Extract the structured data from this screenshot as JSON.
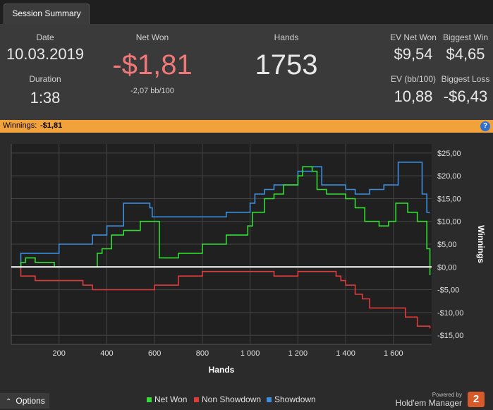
{
  "tab": {
    "label": "Session Summary"
  },
  "summary": {
    "date_label": "Date",
    "date_value": "10.03.2019",
    "duration_label": "Duration",
    "duration_value": "1:38",
    "net_won_label": "Net Won",
    "net_won_value": "-$1,81",
    "net_won_sub": "-2,07 bb/100",
    "hands_label": "Hands",
    "hands_value": "1753",
    "ev_net_won_label": "EV Net Won",
    "ev_net_won_value": "$9,54",
    "biggest_win_label": "Biggest Win",
    "biggest_win_value": "$4,65",
    "ev_bb_label": "EV (bb/100)",
    "ev_bb_value": "10,88",
    "biggest_loss_label": "Biggest Loss",
    "biggest_loss_value": "-$6,43"
  },
  "strip": {
    "label": "Winnings:",
    "value": "-$1,81",
    "help": "?"
  },
  "colors": {
    "net_won": "#33dd33",
    "non_showdown": "#e03b3b",
    "showdown": "#3c8ede",
    "negative": "#f07878",
    "strip": "#f2a23a"
  },
  "chart_data": {
    "type": "line",
    "xlabel": "Hands",
    "ylabel": "Winnings",
    "xlim": [
      0,
      1760
    ],
    "ylim": [
      -17,
      27
    ],
    "x_ticks": [
      200,
      400,
      600,
      800,
      1000,
      1200,
      1400,
      1600
    ],
    "x_tick_labels": [
      "200",
      "400",
      "600",
      "800",
      "1 000",
      "1 200",
      "1 400",
      "1 600"
    ],
    "y_ticks": [
      25,
      20,
      15,
      10,
      5,
      0,
      -5,
      -10,
      -15
    ],
    "y_tick_labels": [
      "$25,00",
      "$20,00",
      "$15,00",
      "$10,00",
      "$5,00",
      "$0,00",
      "-$5,00",
      "-$10,00",
      "-$15,00"
    ],
    "series": [
      {
        "name": "Net Won",
        "color": "#33dd33",
        "x": [
          0,
          40,
          60,
          100,
          180,
          340,
          360,
          380,
          420,
          470,
          540,
          600,
          620,
          640,
          700,
          800,
          900,
          940,
          990,
          1010,
          1060,
          1100,
          1140,
          1200,
          1220,
          1240,
          1260,
          1280,
          1320,
          1400,
          1440,
          1480,
          1540,
          1580,
          1610,
          1660,
          1700,
          1740,
          1753
        ],
        "y": [
          0,
          1,
          2,
          1,
          0,
          0,
          3,
          4,
          7,
          8,
          10,
          10,
          2,
          2,
          3,
          5,
          7,
          7,
          9,
          12,
          15,
          16,
          18,
          20,
          22,
          22,
          21,
          17,
          16,
          15,
          13,
          10,
          9,
          10,
          14,
          12,
          10,
          4,
          -1.81
        ]
      },
      {
        "name": "Non Showdown",
        "color": "#e03b3b",
        "x": [
          0,
          40,
          100,
          200,
          300,
          340,
          400,
          500,
          560,
          600,
          700,
          800,
          900,
          1000,
          1050,
          1100,
          1200,
          1240,
          1300,
          1360,
          1380,
          1400,
          1440,
          1470,
          1500,
          1560,
          1600,
          1650,
          1700,
          1753
        ],
        "y": [
          0,
          -2,
          -3,
          -3,
          -4,
          -5,
          -5,
          -5,
          -5,
          -4,
          -2,
          -1,
          -1,
          -1,
          -1,
          -2,
          -1,
          -1,
          -1,
          -2,
          -3,
          -4,
          -6,
          -7,
          -9,
          -9,
          -9,
          -11,
          -13,
          -13.5
        ]
      },
      {
        "name": "Showdown",
        "color": "#3c8ede",
        "x": [
          0,
          40,
          100,
          200,
          340,
          400,
          470,
          580,
          590,
          640,
          800,
          900,
          940,
          1000,
          1020,
          1060,
          1100,
          1200,
          1260,
          1300,
          1400,
          1440,
          1500,
          1560,
          1620,
          1700,
          1720,
          1740,
          1753
        ],
        "y": [
          0,
          3,
          3,
          5,
          7,
          9,
          14,
          13,
          11,
          11,
          11,
          12,
          12,
          14,
          16,
          17,
          18,
          21,
          22,
          18,
          17,
          16,
          17,
          18,
          23,
          23,
          16,
          12,
          12
        ]
      }
    ]
  },
  "footer": {
    "options_label": "Options",
    "legend_net_won": "Net Won",
    "legend_non_showdown": "Non Showdown",
    "legend_showdown": "Showdown",
    "powered_by": "Powered by",
    "brand": "Hold'em Manager",
    "logo_mark": "2"
  }
}
